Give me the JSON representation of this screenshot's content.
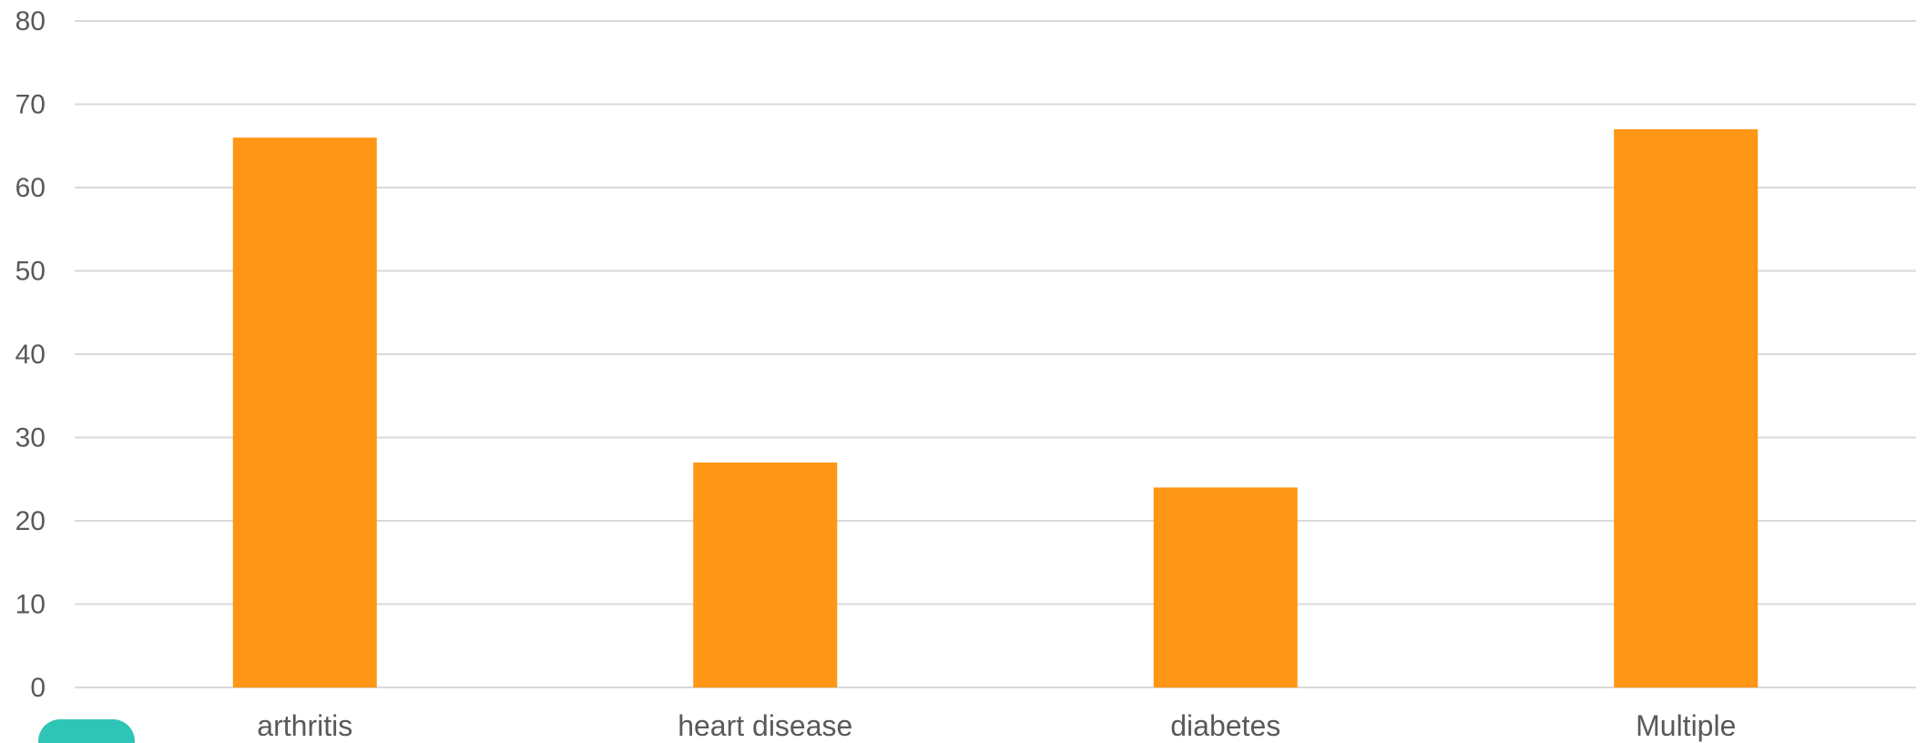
{
  "chart_data": {
    "type": "bar",
    "title": "",
    "xlabel": "",
    "ylabel": "",
    "categories": [
      "arthritis",
      "heart disease",
      "diabetes",
      "Multiple"
    ],
    "values": [
      66,
      27,
      24,
      67
    ],
    "ylim": [
      0,
      80
    ],
    "yticks": [
      0,
      10,
      20,
      30,
      40,
      50,
      60,
      70,
      80
    ],
    "grid": true,
    "legend": "bottom-left",
    "bar_color": "#FF9615",
    "legend_marker_color": "#2EC4B6"
  }
}
